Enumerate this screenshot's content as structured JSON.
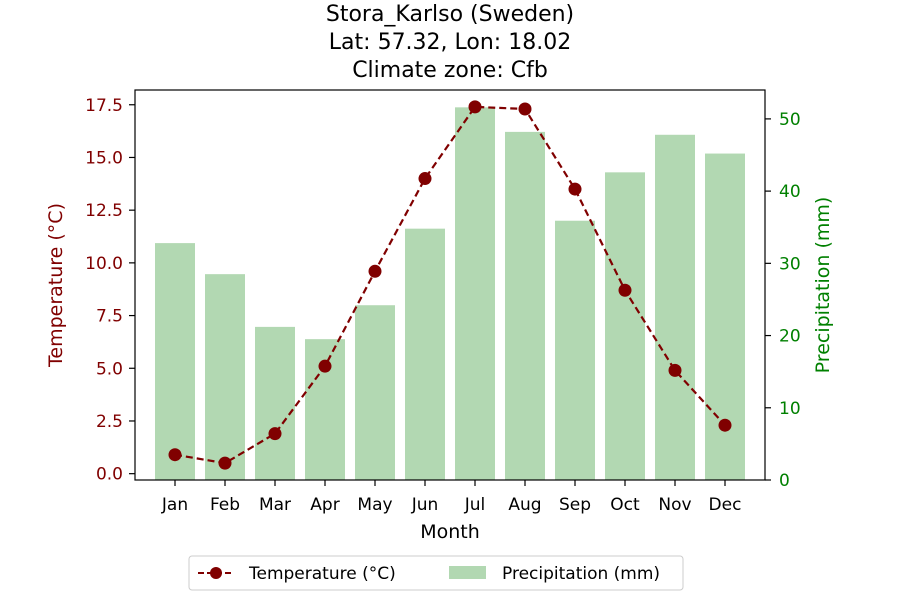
{
  "chart_data": {
    "type": "bar+line",
    "title_lines": [
      "Stora_Karlso (Sweden)",
      "Lat: 57.32, Lon: 18.02",
      "Climate zone: Cfb"
    ],
    "xlabel": "Month",
    "ylabel_left": "Temperature (°C)",
    "ylabel_right": "Precipitation (mm)",
    "categories": [
      "Jan",
      "Feb",
      "Mar",
      "Apr",
      "May",
      "Jun",
      "Jul",
      "Aug",
      "Sep",
      "Oct",
      "Nov",
      "Dec"
    ],
    "temperature": {
      "name": "Temperature (°C)",
      "values": [
        0.9,
        0.5,
        1.9,
        5.1,
        9.6,
        14.0,
        17.4,
        17.3,
        13.5,
        8.7,
        4.9,
        2.3
      ],
      "ylim": [
        -0.3,
        18.2
      ],
      "ticks": [
        "0.0",
        "2.5",
        "5.0",
        "7.5",
        "10.0",
        "12.5",
        "15.0",
        "17.5"
      ],
      "color": "#800000"
    },
    "precipitation": {
      "name": "Precipitation (mm)",
      "values": [
        32.8,
        28.5,
        21.2,
        19.5,
        24.2,
        34.8,
        51.6,
        48.2,
        35.9,
        42.6,
        47.8,
        45.2
      ],
      "ylim": [
        0,
        54
      ],
      "ticks": [
        "0",
        "10",
        "20",
        "30",
        "40",
        "50"
      ],
      "color": "#b2d8b2"
    },
    "right_axis_color": "#008000",
    "legend_position": "bottom-center"
  }
}
